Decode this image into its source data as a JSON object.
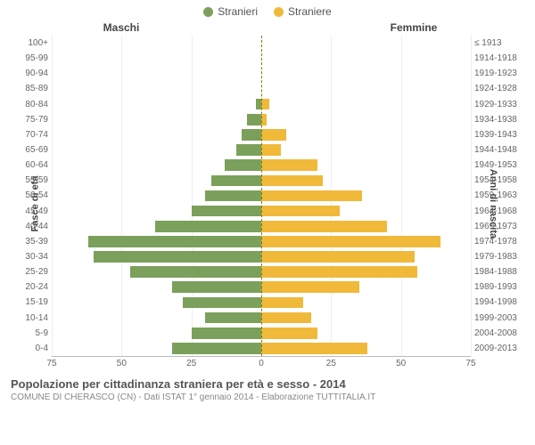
{
  "legend": {
    "male": {
      "label": "Stranieri",
      "color": "#7ba05b"
    },
    "female": {
      "label": "Straniere",
      "color": "#f0b93a"
    }
  },
  "headers": {
    "male": "Maschi",
    "female": "Femmine"
  },
  "axis": {
    "left_label": "Fasce di età",
    "right_label": "Anni di nascita",
    "x_max": 75,
    "x_ticks": [
      75,
      50,
      25,
      0,
      25,
      50,
      75
    ]
  },
  "colors": {
    "male_bar": "#7ba05b",
    "female_bar": "#f0b93a",
    "grid": "#eeeeee",
    "axis_line": "#bbbbbb",
    "center_dash": "#8a7a00",
    "background": "#ffffff"
  },
  "rows": [
    {
      "age": "100+",
      "year": "≤ 1913",
      "m": 0,
      "f": 0
    },
    {
      "age": "95-99",
      "year": "1914-1918",
      "m": 0,
      "f": 0
    },
    {
      "age": "90-94",
      "year": "1919-1923",
      "m": 0,
      "f": 0
    },
    {
      "age": "85-89",
      "year": "1924-1928",
      "m": 0,
      "f": 0
    },
    {
      "age": "80-84",
      "year": "1929-1933",
      "m": 2,
      "f": 3
    },
    {
      "age": "75-79",
      "year": "1934-1938",
      "m": 5,
      "f": 2
    },
    {
      "age": "70-74",
      "year": "1939-1943",
      "m": 7,
      "f": 9
    },
    {
      "age": "65-69",
      "year": "1944-1948",
      "m": 9,
      "f": 7
    },
    {
      "age": "60-64",
      "year": "1949-1953",
      "m": 13,
      "f": 20
    },
    {
      "age": "55-59",
      "year": "1954-1958",
      "m": 18,
      "f": 22
    },
    {
      "age": "50-54",
      "year": "1959-1963",
      "m": 20,
      "f": 36
    },
    {
      "age": "45-49",
      "year": "1964-1968",
      "m": 25,
      "f": 28
    },
    {
      "age": "40-44",
      "year": "1969-1973",
      "m": 38,
      "f": 45
    },
    {
      "age": "35-39",
      "year": "1974-1978",
      "m": 62,
      "f": 64
    },
    {
      "age": "30-34",
      "year": "1979-1983",
      "m": 60,
      "f": 55
    },
    {
      "age": "25-29",
      "year": "1984-1988",
      "m": 47,
      "f": 56
    },
    {
      "age": "20-24",
      "year": "1989-1993",
      "m": 32,
      "f": 35
    },
    {
      "age": "15-19",
      "year": "1994-1998",
      "m": 28,
      "f": 15
    },
    {
      "age": "10-14",
      "year": "1999-2003",
      "m": 20,
      "f": 18
    },
    {
      "age": "5-9",
      "year": "2004-2008",
      "m": 25,
      "f": 20
    },
    {
      "age": "0-4",
      "year": "2009-2013",
      "m": 32,
      "f": 38
    }
  ],
  "footer": {
    "title": "Popolazione per cittadinanza straniera per età e sesso - 2014",
    "subtitle": "COMUNE DI CHERASCO (CN) - Dati ISTAT 1° gennaio 2014 - Elaborazione TUTTITALIA.IT"
  }
}
